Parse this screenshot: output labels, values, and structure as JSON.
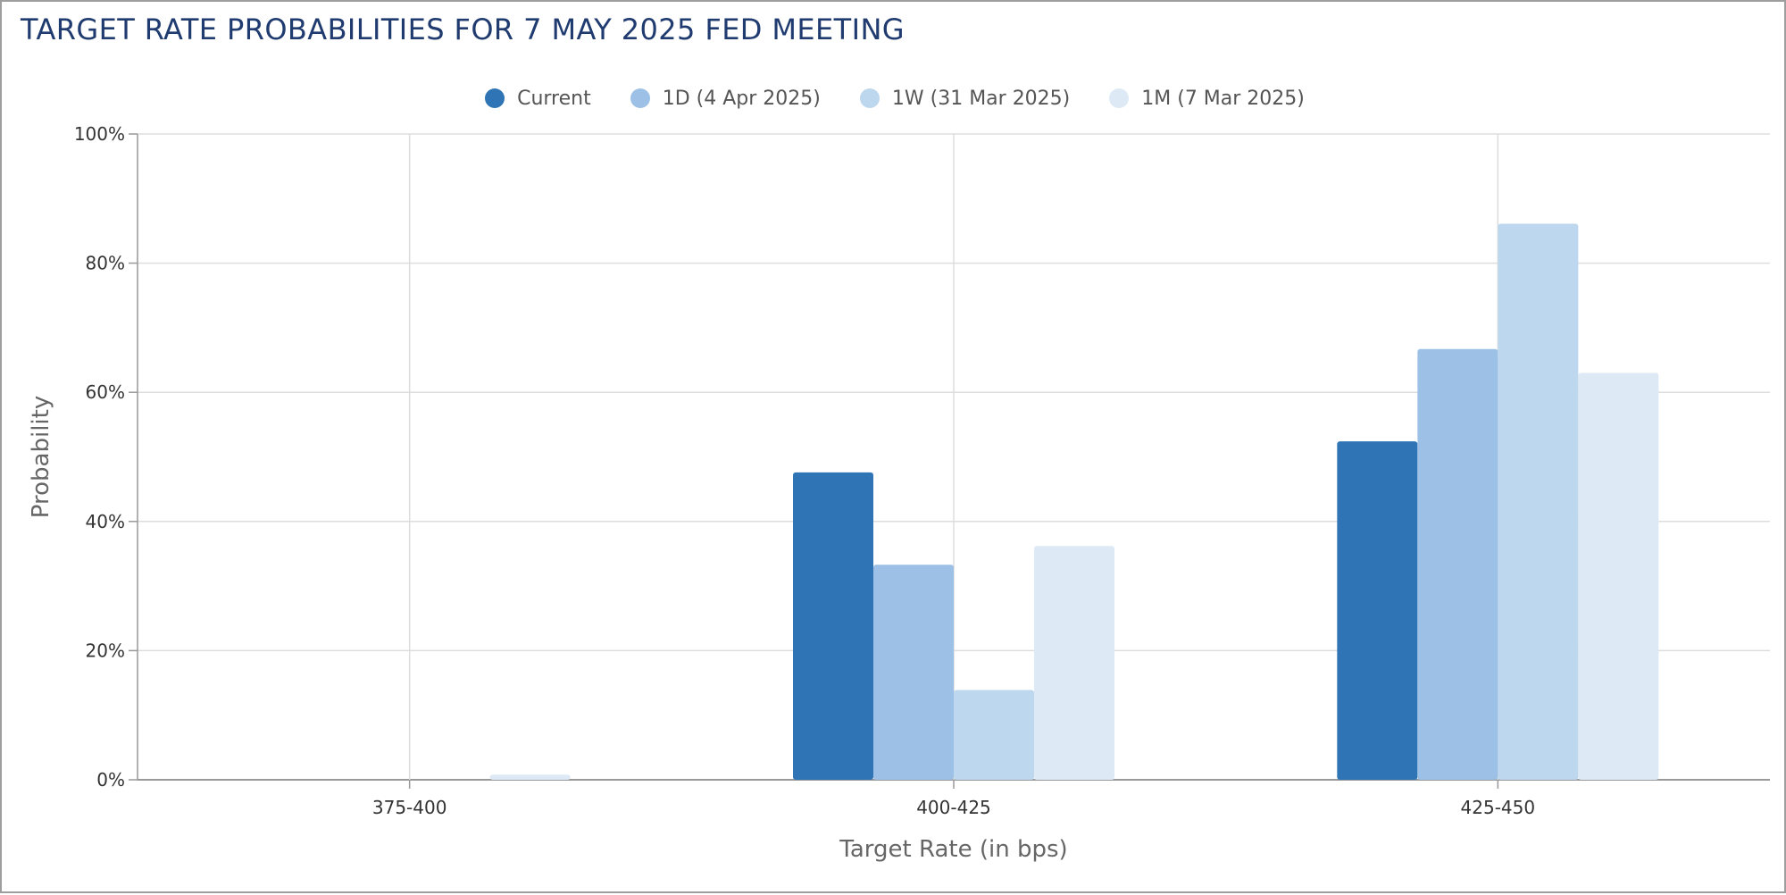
{
  "chart_data": {
    "type": "bar",
    "title": "TARGET RATE PROBABILITIES FOR 7 MAY 2025 FED MEETING",
    "xlabel": "Target Rate (in bps)",
    "ylabel": "Probability",
    "categories": [
      "375-400",
      "400-425",
      "425-450"
    ],
    "yticks": [
      "0%",
      "20%",
      "40%",
      "60%",
      "80%",
      "100%"
    ],
    "ylim": [
      0,
      100
    ],
    "y_unit": "%",
    "grid": true,
    "legend_position": "top-center",
    "series": [
      {
        "name": "Current",
        "color": "#2f75b6",
        "values": [
          0,
          47.6,
          52.4
        ]
      },
      {
        "name": "1D (4 Apr 2025)",
        "color": "#9dc1e6",
        "values": [
          0,
          33.3,
          66.7
        ]
      },
      {
        "name": "1W (31 Mar 2025)",
        "color": "#bdd7ee",
        "values": [
          0,
          13.9,
          86.1
        ]
      },
      {
        "name": "1M (7 Mar 2025)",
        "color": "#ddeaf6",
        "values": [
          0.8,
          36.2,
          63.0
        ]
      }
    ]
  }
}
